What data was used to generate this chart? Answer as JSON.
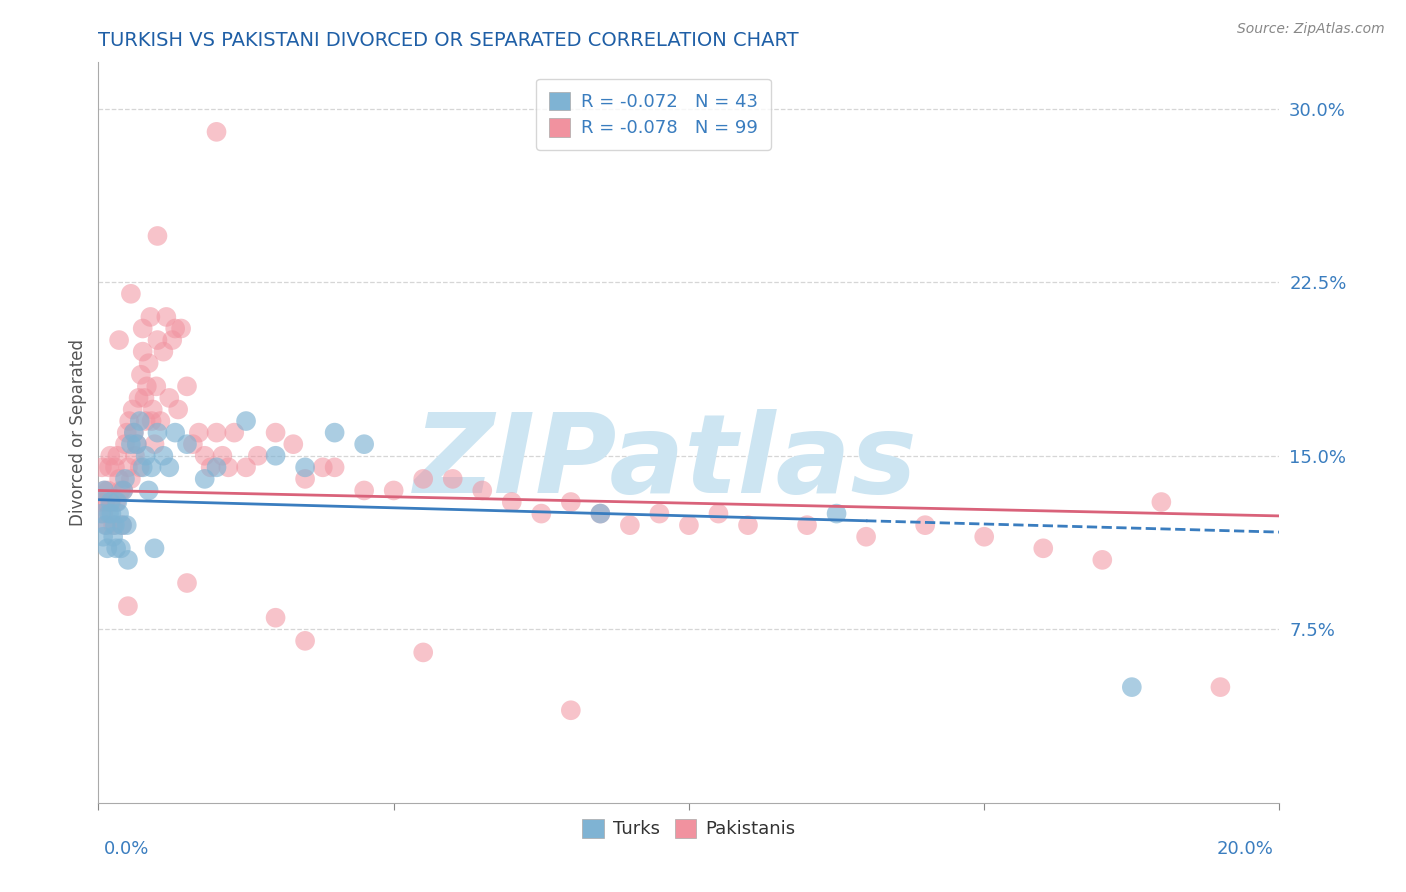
{
  "title": "TURKISH VS PAKISTANI DIVORCED OR SEPARATED CORRELATION CHART",
  "source": "Source: ZipAtlas.com",
  "ylabel": "Divorced or Separated",
  "xmin": 0.0,
  "xmax": 20.0,
  "ymin": 0.0,
  "ymax": 32.0,
  "yticks": [
    7.5,
    15.0,
    22.5,
    30.0
  ],
  "xticks": [
    0.0,
    5.0,
    10.0,
    15.0,
    20.0
  ],
  "turks_color": "#7fb3d3",
  "pakistanis_color": "#f1929f",
  "turks_line_color": "#3a7dbf",
  "pakistanis_line_color": "#d9627a",
  "legend_label_turks": "R = -0.072   N = 43",
  "legend_label_pakistanis": "R = -0.078   N = 99",
  "background_color": "#ffffff",
  "grid_color": "#cccccc",
  "title_color": "#1f5fa6",
  "tick_color": "#3a7dbf",
  "watermark": "ZIPatlas",
  "watermark_color": "#cde5f2",
  "turk_line_start_y": 13.1,
  "turk_line_end_y": 11.7,
  "pak_line_start_y": 13.5,
  "pak_line_end_y": 12.4,
  "turk_solid_end_x": 13.0,
  "turks_x": [
    0.05,
    0.08,
    0.1,
    0.12,
    0.15,
    0.18,
    0.2,
    0.22,
    0.25,
    0.28,
    0.3,
    0.32,
    0.35,
    0.38,
    0.4,
    0.42,
    0.45,
    0.48,
    0.5,
    0.55,
    0.6,
    0.65,
    0.7,
    0.75,
    0.8,
    0.85,
    0.9,
    0.95,
    1.0,
    1.1,
    1.2,
    1.3,
    1.5,
    1.8,
    2.0,
    2.5,
    3.0,
    3.5,
    4.0,
    4.5,
    8.5,
    12.5,
    17.5
  ],
  "turks_y": [
    12.5,
    11.5,
    13.5,
    12.0,
    11.0,
    12.5,
    13.0,
    12.5,
    11.5,
    12.0,
    11.0,
    13.0,
    12.5,
    11.0,
    12.0,
    13.5,
    14.0,
    12.0,
    10.5,
    15.5,
    16.0,
    15.5,
    16.5,
    14.5,
    15.0,
    13.5,
    14.5,
    11.0,
    16.0,
    15.0,
    14.5,
    16.0,
    15.5,
    14.0,
    14.5,
    16.5,
    15.0,
    14.5,
    16.0,
    15.5,
    12.5,
    12.5,
    5.0
  ],
  "pakistanis_x": [
    0.04,
    0.06,
    0.08,
    0.1,
    0.12,
    0.14,
    0.16,
    0.18,
    0.2,
    0.22,
    0.25,
    0.28,
    0.3,
    0.32,
    0.35,
    0.38,
    0.4,
    0.42,
    0.45,
    0.48,
    0.5,
    0.52,
    0.55,
    0.58,
    0.6,
    0.62,
    0.65,
    0.68,
    0.7,
    0.72,
    0.75,
    0.78,
    0.8,
    0.82,
    0.85,
    0.88,
    0.9,
    0.92,
    0.95,
    0.98,
    1.0,
    1.05,
    1.1,
    1.15,
    1.2,
    1.25,
    1.3,
    1.35,
    1.4,
    1.5,
    1.6,
    1.7,
    1.8,
    1.9,
    2.0,
    2.1,
    2.2,
    2.3,
    2.5,
    2.7,
    3.0,
    3.3,
    3.5,
    3.8,
    4.0,
    4.5,
    5.0,
    5.5,
    6.0,
    6.5,
    7.0,
    7.5,
    8.0,
    8.5,
    9.0,
    9.5,
    10.0,
    10.5,
    11.0,
    12.0,
    13.0,
    14.0,
    15.0,
    16.0,
    17.0,
    18.0,
    19.0,
    0.35,
    0.55,
    0.75,
    1.0,
    2.0,
    3.5,
    0.5,
    1.5,
    3.0,
    8.0,
    5.5
  ],
  "pakistanis_y": [
    13.0,
    14.5,
    12.5,
    13.5,
    13.0,
    12.0,
    13.5,
    14.5,
    15.0,
    13.0,
    12.0,
    14.5,
    13.0,
    15.0,
    14.0,
    13.5,
    12.0,
    13.5,
    15.5,
    16.0,
    14.5,
    16.5,
    14.0,
    17.0,
    16.0,
    15.0,
    15.5,
    17.5,
    14.5,
    18.5,
    19.5,
    17.5,
    16.5,
    18.0,
    19.0,
    21.0,
    16.5,
    17.0,
    15.5,
    18.0,
    20.0,
    16.5,
    19.5,
    21.0,
    17.5,
    20.0,
    20.5,
    17.0,
    20.5,
    18.0,
    15.5,
    16.0,
    15.0,
    14.5,
    16.0,
    15.0,
    14.5,
    16.0,
    14.5,
    15.0,
    16.0,
    15.5,
    14.0,
    14.5,
    14.5,
    13.5,
    13.5,
    14.0,
    14.0,
    13.5,
    13.0,
    12.5,
    13.0,
    12.5,
    12.0,
    12.5,
    12.0,
    12.5,
    12.0,
    12.0,
    11.5,
    12.0,
    11.5,
    11.0,
    10.5,
    13.0,
    5.0,
    20.0,
    22.0,
    20.5,
    24.5,
    29.0,
    7.0,
    8.5,
    9.5,
    8.0,
    4.0,
    6.5
  ]
}
